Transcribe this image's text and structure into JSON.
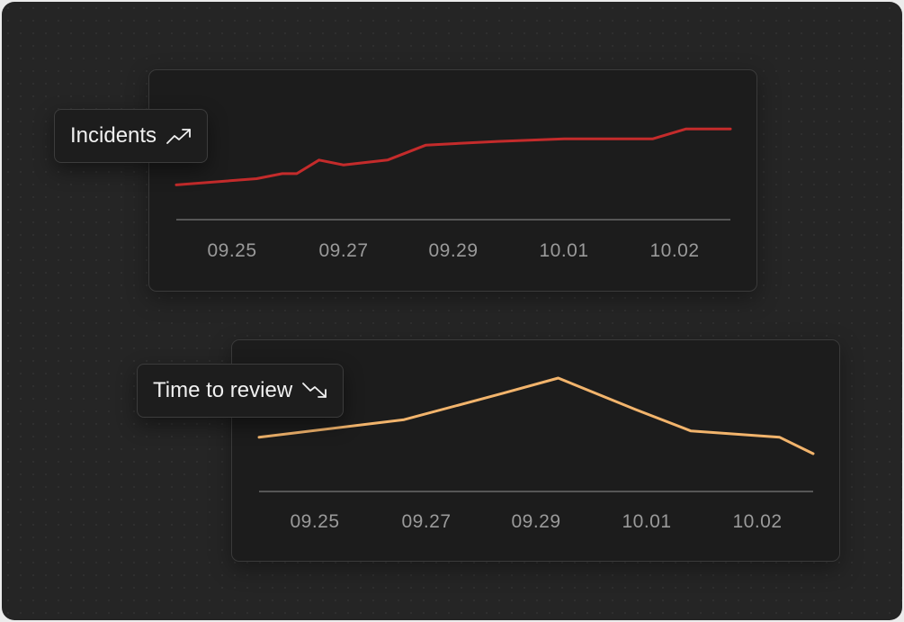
{
  "colors": {
    "incidents_line": "#c42b2b",
    "review_line": "#f2b46c",
    "baseline": "#6a6a6a"
  },
  "labels": {
    "incidents": "Incidents",
    "incidents_icon": "trending-up-icon",
    "review": "Time to review",
    "review_icon": "trending-down-icon"
  },
  "chart_data": [
    {
      "type": "line",
      "title": "Incidents",
      "trend": "up",
      "x_ticks": [
        "09.25",
        "09.27",
        "09.29",
        "10.01",
        "10.02"
      ],
      "x": [
        0,
        0.22,
        0.45,
        0.58,
        0.78,
        1.0,
        1.4,
        1.75,
        2.4,
        3.0,
        3.5,
        3.8,
        4.1,
        4.25
      ],
      "values": [
        28,
        33,
        37,
        37,
        48,
        44,
        48,
        60,
        63,
        65,
        65,
        65,
        73,
        73
      ],
      "ylim": [
        0,
        100
      ],
      "grid": false,
      "legend": "none"
    },
    {
      "type": "line",
      "title": "Time to review",
      "trend": "down",
      "x_ticks": [
        "09.25",
        "09.27",
        "09.29",
        "10.01",
        "10.02"
      ],
      "x": [
        0,
        0.8,
        1.7,
        2.2,
        2.9,
        3.4,
        4.2,
        5.0
      ],
      "values": [
        43,
        57,
        78,
        90,
        65,
        48,
        43,
        30
      ],
      "ylim": [
        0,
        100
      ],
      "grid": false,
      "legend": "none"
    }
  ]
}
